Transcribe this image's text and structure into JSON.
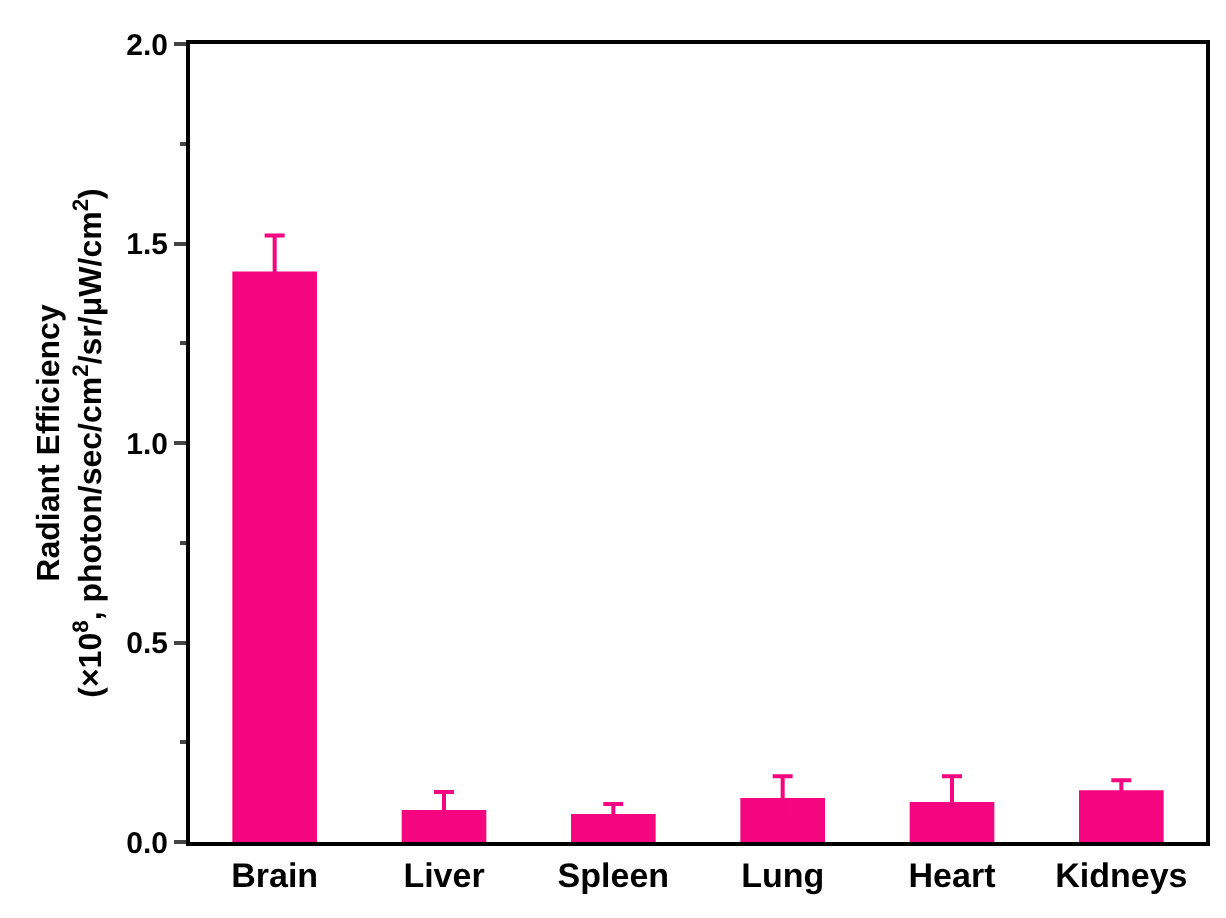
{
  "chart_data": {
    "type": "bar",
    "ylabel": "Radiant Efficiency\n(×10$^{8}$, photon/sec/cm$^{2}$/sr/μW/cm$^{2}$)",
    "categories": [
      "Brain",
      "Liver",
      "Spleen",
      "Lung",
      "Heart",
      "Kidneys"
    ],
    "values": [
      1.43,
      0.08,
      0.07,
      0.11,
      0.1,
      0.13
    ],
    "errors": [
      0.09,
      0.045,
      0.025,
      0.055,
      0.065,
      0.025
    ],
    "color": "#f5057f",
    "ylim": [
      0,
      2.0
    ],
    "yticks": [
      {
        "value": 0,
        "label": "0.0"
      },
      0.5,
      {
        "value": 1,
        "label": "1.0"
      },
      1.5,
      {
        "value": 2,
        "label": "2.0"
      }
    ]
  }
}
